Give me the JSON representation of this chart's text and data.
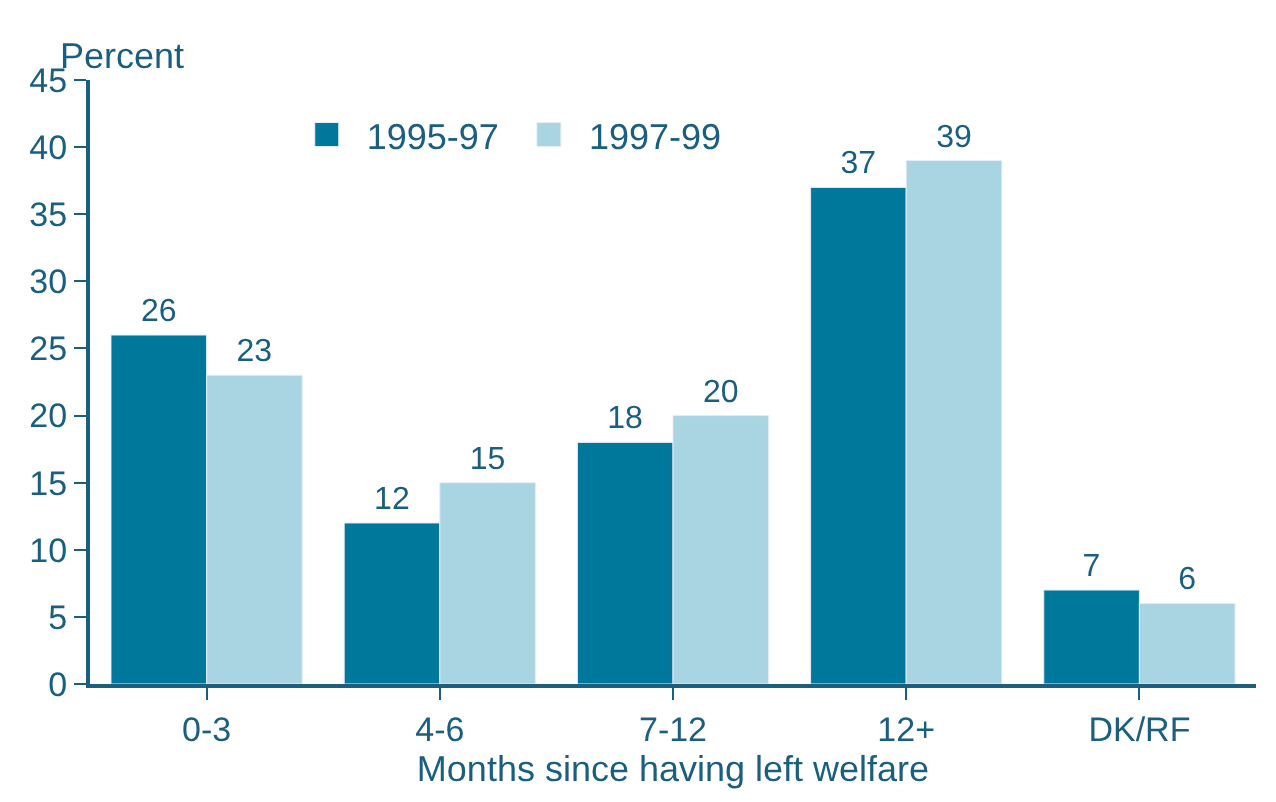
{
  "chart_data": {
    "type": "bar",
    "ylabel": "Percent",
    "xlabel": "Months since having left welfare",
    "categories": [
      "0-3",
      "4-6",
      "7-12",
      "12+",
      "DK/RF"
    ],
    "series": [
      {
        "name": "1995-97",
        "color": "#00789c",
        "values": [
          26,
          12,
          18,
          37,
          7
        ]
      },
      {
        "name": "1997-99",
        "color": "#a9d4e2",
        "values": [
          23,
          15,
          20,
          39,
          6
        ]
      }
    ],
    "ylim": [
      0,
      45
    ],
    "yticks": [
      0,
      5,
      10,
      15,
      20,
      25,
      30,
      35,
      40,
      45
    ],
    "data_labels": true,
    "legend": "top"
  }
}
